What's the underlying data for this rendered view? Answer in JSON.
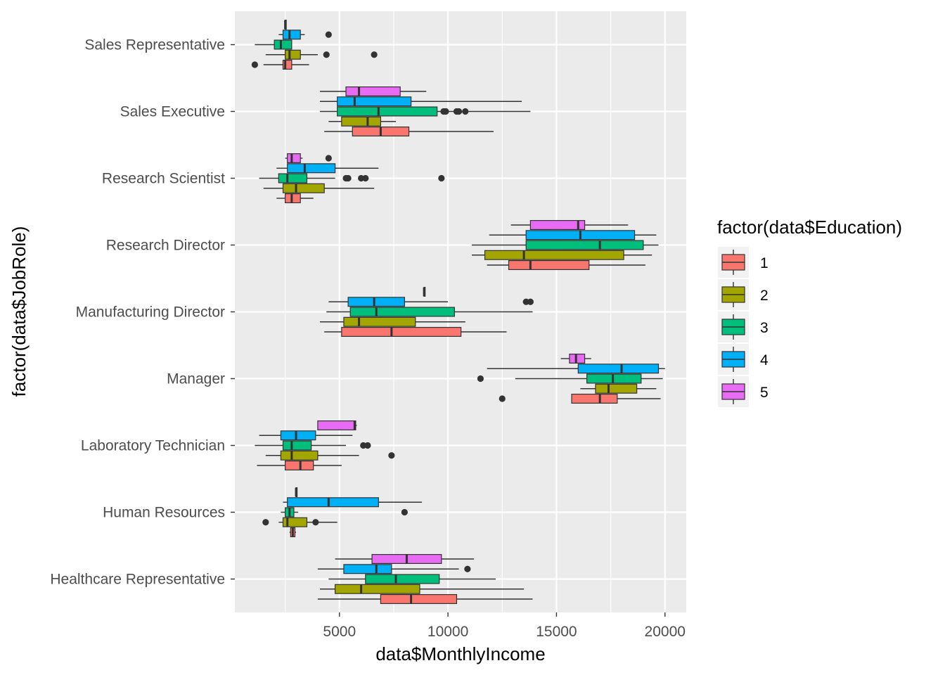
{
  "chart_data": {
    "type": "boxplot",
    "orientation": "horizontal",
    "xlabel": "data$MonthlyIncome",
    "ylabel": "factor(data$JobRole)",
    "xlim": [
      180,
      20980
    ],
    "xticks": [
      5000,
      10000,
      15000,
      20000
    ],
    "grid": true,
    "legend": {
      "title": "factor(data$Education)",
      "position": "right",
      "entries": [
        {
          "label": "1",
          "color": "#F8766D"
        },
        {
          "label": "2",
          "color": "#A3A500"
        },
        {
          "label": "3",
          "color": "#00BF7D"
        },
        {
          "label": "4",
          "color": "#00B0F6"
        },
        {
          "label": "5",
          "color": "#E76BF3"
        }
      ]
    },
    "categories": [
      "Healthcare Representative",
      "Human Resources",
      "Laboratory Technician",
      "Manager",
      "Manufacturing Director",
      "Research Director",
      "Research Scientist",
      "Sales Executive",
      "Sales Representative"
    ],
    "boxes": [
      {
        "category": "Healthcare Representative",
        "group": "1",
        "wlo": 4000,
        "q1": 6900,
        "med": 8300,
        "q3": 10400,
        "whi": 13900,
        "outliers": []
      },
      {
        "category": "Healthcare Representative",
        "group": "2",
        "wlo": 4100,
        "q1": 4800,
        "med": 6000,
        "q3": 8700,
        "whi": 13500,
        "outliers": []
      },
      {
        "category": "Healthcare Representative",
        "group": "3",
        "wlo": 4500,
        "q1": 6200,
        "med": 7600,
        "q3": 9600,
        "whi": 12200,
        "outliers": []
      },
      {
        "category": "Healthcare Representative",
        "group": "4",
        "wlo": 4000,
        "q1": 5200,
        "med": 6700,
        "q3": 7400,
        "whi": 10500,
        "outliers": [
          10900
        ]
      },
      {
        "category": "Healthcare Representative",
        "group": "5",
        "wlo": 4800,
        "q1": 6500,
        "med": 8100,
        "q3": 9700,
        "whi": 11200,
        "outliers": []
      },
      {
        "category": "Human Resources",
        "group": "1",
        "wlo": 2700,
        "q1": 2750,
        "med": 2850,
        "q3": 2950,
        "whi": 3000,
        "outliers": []
      },
      {
        "category": "Human Resources",
        "group": "2",
        "wlo": 2200,
        "q1": 2400,
        "med": 2600,
        "q3": 3500,
        "whi": 4900,
        "outliers": [
          1600,
          3900
        ]
      },
      {
        "category": "Human Resources",
        "group": "3",
        "wlo": 2300,
        "q1": 2500,
        "med": 2700,
        "q3": 2900,
        "whi": 3100,
        "outliers": [
          8000
        ]
      },
      {
        "category": "Human Resources",
        "group": "4",
        "wlo": 2400,
        "q1": 2600,
        "med": 4500,
        "q3": 6800,
        "whi": 8800,
        "outliers": []
      },
      {
        "category": "Human Resources",
        "group": "5",
        "wlo": 3000,
        "q1": 3000,
        "med": 3000,
        "q3": 3050,
        "whi": 3050,
        "outliers": []
      },
      {
        "category": "Laboratory Technician",
        "group": "1",
        "wlo": 1200,
        "q1": 2500,
        "med": 3200,
        "q3": 3800,
        "whi": 5100,
        "outliers": []
      },
      {
        "category": "Laboratory Technician",
        "group": "2",
        "wlo": 1600,
        "q1": 2300,
        "med": 2800,
        "q3": 4000,
        "whi": 5900,
        "outliers": [
          7400
        ]
      },
      {
        "category": "Laboratory Technician",
        "group": "3",
        "wlo": 1100,
        "q1": 2400,
        "med": 2800,
        "q3": 3700,
        "whi": 5300,
        "outliers": [
          6100,
          6300
        ]
      },
      {
        "category": "Laboratory Technician",
        "group": "4",
        "wlo": 1300,
        "q1": 2300,
        "med": 3000,
        "q3": 3900,
        "whi": 5600,
        "outliers": []
      },
      {
        "category": "Laboratory Technician",
        "group": "5",
        "wlo": 4000,
        "q1": 4000,
        "med": 5700,
        "q3": 5750,
        "whi": 5800,
        "outliers": []
      },
      {
        "category": "Manager",
        "group": "1",
        "wlo": 15700,
        "q1": 15700,
        "med": 17000,
        "q3": 17800,
        "whi": 19800,
        "outliers": [
          12500
        ]
      },
      {
        "category": "Manager",
        "group": "2",
        "wlo": 16100,
        "q1": 16800,
        "med": 17400,
        "q3": 18700,
        "whi": 19600,
        "outliers": []
      },
      {
        "category": "Manager",
        "group": "3",
        "wlo": 13100,
        "q1": 16400,
        "med": 17600,
        "q3": 18900,
        "whi": 19900,
        "outliers": [
          11500
        ]
      },
      {
        "category": "Manager",
        "group": "4",
        "wlo": 11800,
        "q1": 16000,
        "med": 18000,
        "q3": 19700,
        "whi": 20000,
        "outliers": []
      },
      {
        "category": "Manager",
        "group": "5",
        "wlo": 15200,
        "q1": 15600,
        "med": 15900,
        "q3": 16300,
        "whi": 16600,
        "outliers": []
      },
      {
        "category": "Manufacturing Director",
        "group": "1",
        "wlo": 4300,
        "q1": 5100,
        "med": 7400,
        "q3": 10600,
        "whi": 12700,
        "outliers": []
      },
      {
        "category": "Manufacturing Director",
        "group": "2",
        "wlo": 4100,
        "q1": 5200,
        "med": 5900,
        "q3": 8500,
        "whi": 10800,
        "outliers": []
      },
      {
        "category": "Manufacturing Director",
        "group": "3",
        "wlo": 4400,
        "q1": 5500,
        "med": 6700,
        "q3": 10300,
        "whi": 13900,
        "outliers": []
      },
      {
        "category": "Manufacturing Director",
        "group": "4",
        "wlo": 4500,
        "q1": 5400,
        "med": 6600,
        "q3": 8000,
        "whi": 10000,
        "outliers": [
          13600,
          13800
        ]
      },
      {
        "category": "Manufacturing Director",
        "group": "5",
        "wlo": 8900,
        "q1": 8900,
        "med": 8900,
        "q3": 8950,
        "whi": 8950,
        "outliers": []
      },
      {
        "category": "Research Director",
        "group": "1",
        "wlo": 11800,
        "q1": 12800,
        "med": 13800,
        "q3": 16500,
        "whi": 19100,
        "outliers": []
      },
      {
        "category": "Research Director",
        "group": "2",
        "wlo": 11100,
        "q1": 11700,
        "med": 13500,
        "q3": 18100,
        "whi": 19400,
        "outliers": []
      },
      {
        "category": "Research Director",
        "group": "3",
        "wlo": 11100,
        "q1": 13600,
        "med": 17000,
        "q3": 19000,
        "whi": 19700,
        "outliers": []
      },
      {
        "category": "Research Director",
        "group": "4",
        "wlo": 11900,
        "q1": 13600,
        "med": 16100,
        "q3": 18600,
        "whi": 19600,
        "outliers": []
      },
      {
        "category": "Research Director",
        "group": "5",
        "wlo": 12900,
        "q1": 13800,
        "med": 16000,
        "q3": 16300,
        "whi": 18300,
        "outliers": []
      },
      {
        "category": "Research Scientist",
        "group": "1",
        "wlo": 2100,
        "q1": 2500,
        "med": 2800,
        "q3": 3200,
        "whi": 3800,
        "outliers": []
      },
      {
        "category": "Research Scientist",
        "group": "2",
        "wlo": 1500,
        "q1": 2400,
        "med": 3000,
        "q3": 4300,
        "whi": 6600,
        "outliers": []
      },
      {
        "category": "Research Scientist",
        "group": "3",
        "wlo": 1300,
        "q1": 2200,
        "med": 2600,
        "q3": 3500,
        "whi": 4800,
        "outliers": [
          5300,
          5400,
          6000,
          6200,
          9700
        ]
      },
      {
        "category": "Research Scientist",
        "group": "4",
        "wlo": 2100,
        "q1": 2600,
        "med": 3400,
        "q3": 4800,
        "whi": 6800,
        "outliers": []
      },
      {
        "category": "Research Scientist",
        "group": "5",
        "wlo": 2500,
        "q1": 2600,
        "med": 2800,
        "q3": 3200,
        "whi": 3300,
        "outliers": [
          4500
        ]
      },
      {
        "category": "Sales Executive",
        "group": "1",
        "wlo": 4300,
        "q1": 5600,
        "med": 6900,
        "q3": 8200,
        "whi": 12100,
        "outliers": []
      },
      {
        "category": "Sales Executive",
        "group": "2",
        "wlo": 4500,
        "q1": 5100,
        "med": 6300,
        "q3": 6900,
        "whi": 7600,
        "outliers": []
      },
      {
        "category": "Sales Executive",
        "group": "3",
        "wlo": 4100,
        "q1": 4900,
        "med": 6800,
        "q3": 9500,
        "whi": 13800,
        "outliers": [
          9800,
          9900,
          10400,
          10500,
          10800
        ]
      },
      {
        "category": "Sales Executive",
        "group": "4",
        "wlo": 4100,
        "q1": 4900,
        "med": 5700,
        "q3": 8300,
        "whi": 13400,
        "outliers": []
      },
      {
        "category": "Sales Executive",
        "group": "5",
        "wlo": 4100,
        "q1": 5300,
        "med": 5900,
        "q3": 7800,
        "whi": 9000,
        "outliers": []
      },
      {
        "category": "Sales Representative",
        "group": "1",
        "wlo": 1500,
        "q1": 2400,
        "med": 2500,
        "q3": 2800,
        "whi": 3600,
        "outliers": [
          1100
        ]
      },
      {
        "category": "Sales Representative",
        "group": "2",
        "wlo": 1600,
        "q1": 2500,
        "med": 2700,
        "q3": 3200,
        "whi": 4000,
        "outliers": [
          4400,
          6600
        ]
      },
      {
        "category": "Sales Representative",
        "group": "3",
        "wlo": 1100,
        "q1": 2000,
        "med": 2300,
        "q3": 2800,
        "whi": 2800,
        "outliers": []
      },
      {
        "category": "Sales Representative",
        "group": "4",
        "wlo": 2200,
        "q1": 2400,
        "med": 2700,
        "q3": 3200,
        "whi": 3400,
        "outliers": [
          4500
        ]
      },
      {
        "category": "Sales Representative",
        "group": "5",
        "wlo": 2500,
        "q1": 2500,
        "med": 2500,
        "q3": 2550,
        "whi": 2550,
        "outliers": []
      }
    ]
  }
}
